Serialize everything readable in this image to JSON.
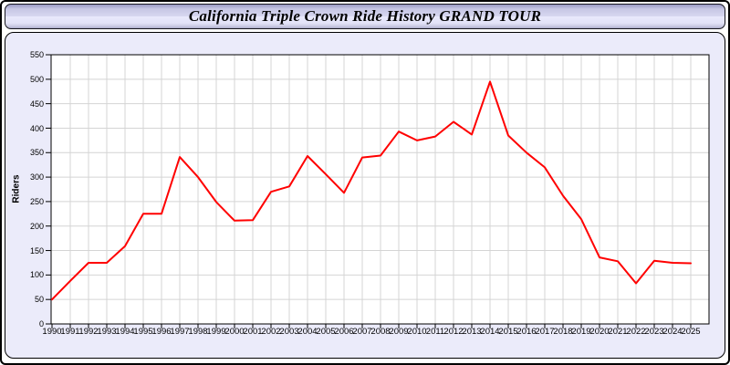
{
  "title": "California Triple Crown Ride History GRAND TOUR",
  "colors": {
    "line": "#ff0000",
    "panel_background": "#ebebfa",
    "plot_background": "#ffffff",
    "gridline": "#d4d4d4",
    "axis": "#000000",
    "title_text": "#000000"
  },
  "chart_data": {
    "type": "line",
    "title": "California Triple Crown Ride History GRAND TOUR",
    "xlabel": "",
    "ylabel": "Riders",
    "ylim": [
      0,
      550
    ],
    "y_tick_step": 50,
    "grid": true,
    "legend": "none",
    "line_color": "#ff0000",
    "categories": [
      1990,
      1991,
      1992,
      1993,
      1994,
      1995,
      1996,
      1997,
      1998,
      1999,
      2000,
      2001,
      2002,
      2003,
      2004,
      2005,
      2006,
      2007,
      2008,
      2009,
      2010,
      2011,
      2012,
      2013,
      2014,
      2015,
      2016,
      2017,
      2018,
      2019,
      2020,
      2021,
      2022,
      2023,
      2024,
      2025
    ],
    "series": [
      {
        "name": "Riders",
        "values": [
          50,
          88,
          125,
          125,
          159,
          225,
          225,
          341,
          300,
          249,
          211,
          212,
          270,
          281,
          343,
          306,
          268,
          340,
          344,
          393,
          375,
          383,
          413,
          387,
          495,
          385,
          350,
          320,
          262,
          214,
          136,
          128,
          83,
          129,
          125,
          124
        ]
      }
    ]
  }
}
